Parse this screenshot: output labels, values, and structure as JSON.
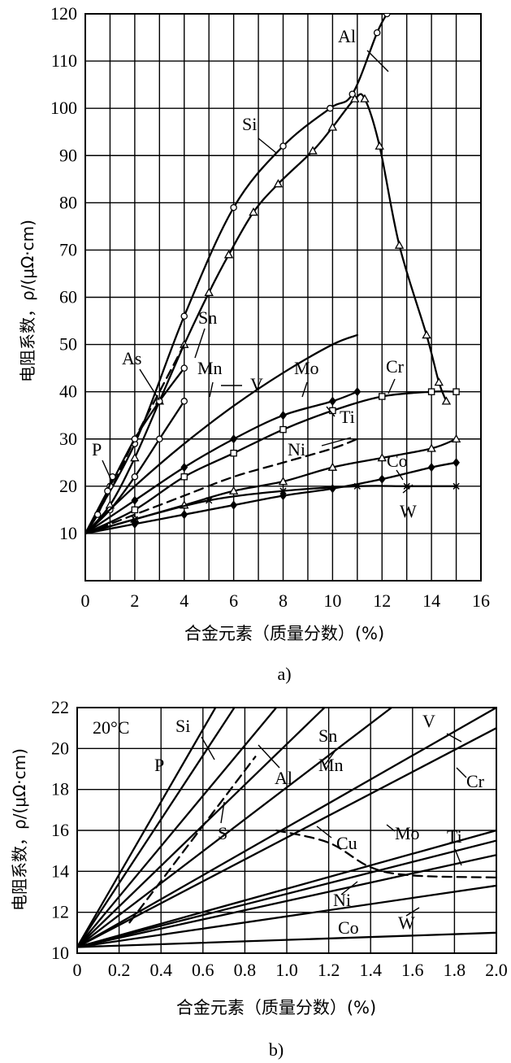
{
  "chart_data": [
    {
      "type": "line",
      "panel": "a)",
      "caption": "a)",
      "xlabel": "合金元素（质量分数）(%)",
      "ylabel": "电阻系数，ρ/(μΩ·cm)",
      "xlim": [
        0,
        16
      ],
      "ylim": [
        0,
        120
      ],
      "xticks": [
        0,
        2,
        4,
        6,
        8,
        10,
        12,
        14,
        16
      ],
      "yticks": [
        10,
        20,
        30,
        40,
        50,
        60,
        70,
        80,
        90,
        100,
        110,
        120
      ],
      "series": [
        {
          "name": "Al",
          "marker": "circle",
          "x": [
            0,
            2,
            4,
            6,
            8,
            9.9,
            10.8,
            11.8,
            12.2
          ],
          "y": [
            10,
            29,
            56,
            79,
            92,
            100,
            103,
            116,
            120
          ]
        },
        {
          "name": "Si",
          "marker": "triangle",
          "x": [
            0,
            1,
            2,
            3,
            4,
            5,
            5.8,
            6.8,
            7.8,
            9.2,
            10,
            10.9,
            11.3,
            11.9,
            12.7,
            13.8,
            14.3,
            14.6
          ],
          "y": [
            10,
            16,
            26,
            38,
            50,
            61,
            69,
            78,
            84,
            91,
            96,
            102,
            102,
            92,
            71,
            52,
            42,
            38
          ]
        },
        {
          "name": "Sn",
          "marker": "none",
          "dashed": true,
          "x": [
            0,
            1,
            2,
            3,
            4
          ],
          "y": [
            10,
            19,
            30,
            40,
            50
          ]
        },
        {
          "name": "As",
          "marker": "circle",
          "x": [
            0,
            1,
            2,
            3,
            4
          ],
          "y": [
            10,
            20,
            30,
            38,
            45
          ]
        },
        {
          "name": "Mn",
          "marker": "circle",
          "x": [
            0,
            1,
            2,
            3,
            4
          ],
          "y": [
            10,
            15,
            22,
            30,
            38
          ]
        },
        {
          "name": "V",
          "marker": "none",
          "x": [
            0,
            2,
            4,
            6,
            8,
            10,
            11
          ],
          "y": [
            10,
            20,
            29,
            37,
            44,
            50,
            52
          ]
        },
        {
          "name": "Mo",
          "marker": "diamond",
          "x": [
            0,
            2,
            4,
            6,
            8,
            10,
            11
          ],
          "y": [
            10,
            17,
            24,
            30,
            35,
            38,
            40
          ]
        },
        {
          "name": "Cr",
          "marker": "square",
          "x": [
            0,
            2,
            4,
            6,
            8,
            10,
            12,
            14,
            15
          ],
          "y": [
            10,
            15,
            22,
            27,
            32,
            36,
            39,
            40,
            40
          ]
        },
        {
          "name": "Ti",
          "marker": "triangle",
          "x": [
            0,
            2,
            4,
            6,
            8,
            10,
            12,
            14,
            15
          ],
          "y": [
            10,
            13,
            16,
            19,
            21,
            24,
            26,
            28,
            30
          ]
        },
        {
          "name": "Ni",
          "marker": "none",
          "dashed": true,
          "x": [
            0,
            2,
            4,
            6,
            8,
            10,
            11
          ],
          "y": [
            10,
            14,
            18,
            22,
            25,
            28,
            30
          ]
        },
        {
          "name": "Co",
          "marker": "diamond",
          "x": [
            0,
            2,
            4,
            6,
            8,
            10,
            12,
            14,
            15
          ],
          "y": [
            10,
            12,
            14,
            16,
            18,
            19.5,
            21.5,
            24,
            25
          ]
        },
        {
          "name": "W",
          "marker": "cross",
          "x": [
            0,
            2,
            5,
            8,
            11,
            13,
            15
          ],
          "y": [
            10,
            13,
            17,
            19,
            20,
            20,
            20
          ]
        },
        {
          "name": "P",
          "marker": "circle",
          "x": [
            0,
            0.5,
            0.9,
            1.1
          ],
          "y": [
            10,
            14,
            19,
            22
          ]
        }
      ]
    },
    {
      "type": "line",
      "panel": "b)",
      "caption": "b)",
      "annotation": "20°C",
      "xlabel": "合金元素（质量分数）(%)",
      "ylabel": "电阻系数，ρ/(μΩ·cm)",
      "xlim": [
        0,
        2.0
      ],
      "ylim": [
        10,
        22
      ],
      "xticks": [
        0,
        0.2,
        0.4,
        0.6,
        0.8,
        1.0,
        1.2,
        1.4,
        1.6,
        1.8,
        2.0
      ],
      "xtick_labels": [
        "0",
        "0.2",
        "0.4",
        "0.6",
        "0.8",
        "1.0",
        "1.2",
        "1.4",
        "1.6",
        "1.8",
        "2.0"
      ],
      "yticks": [
        10,
        12,
        14,
        16,
        18,
        20,
        22
      ],
      "series": [
        {
          "name": "P",
          "x": [
            0,
            0.66
          ],
          "y": [
            10.3,
            22
          ]
        },
        {
          "name": "Si",
          "x": [
            0,
            0.75
          ],
          "y": [
            10.3,
            22
          ]
        },
        {
          "name": "S",
          "dashed": true,
          "x": [
            0.25,
            0.85
          ],
          "y": [
            11.5,
            19.6
          ]
        },
        {
          "name": "Al",
          "x": [
            0,
            0.95
          ],
          "y": [
            10.3,
            22
          ]
        },
        {
          "name": "Sn",
          "x": [
            0,
            1.18
          ],
          "y": [
            10.3,
            22
          ]
        },
        {
          "name": "Mn",
          "x": [
            0,
            1.5
          ],
          "y": [
            10.3,
            22
          ]
        },
        {
          "name": "V",
          "x": [
            0,
            2.0
          ],
          "y": [
            10.3,
            22
          ]
        },
        {
          "name": "Cr",
          "x": [
            0,
            2.0
          ],
          "y": [
            10.3,
            21
          ]
        },
        {
          "name": "Cu",
          "dashed": true,
          "x": [
            0.95,
            1.2,
            1.4,
            1.6,
            2.0
          ],
          "y": [
            16.0,
            15.4,
            14.2,
            13.8,
            13.7
          ]
        },
        {
          "name": "Mo",
          "x": [
            0,
            2.0
          ],
          "y": [
            10.3,
            16.0
          ]
        },
        {
          "name": "Ti",
          "x": [
            0,
            2.0
          ],
          "y": [
            10.3,
            15.5
          ]
        },
        {
          "name": "Ni",
          "x": [
            0,
            2.0
          ],
          "y": [
            10.3,
            14.8
          ]
        },
        {
          "name": "W",
          "x": [
            0,
            2.0
          ],
          "y": [
            10.3,
            13.3
          ]
        },
        {
          "name": "Co",
          "x": [
            0,
            2.0
          ],
          "y": [
            10.3,
            11.0
          ]
        }
      ]
    }
  ]
}
